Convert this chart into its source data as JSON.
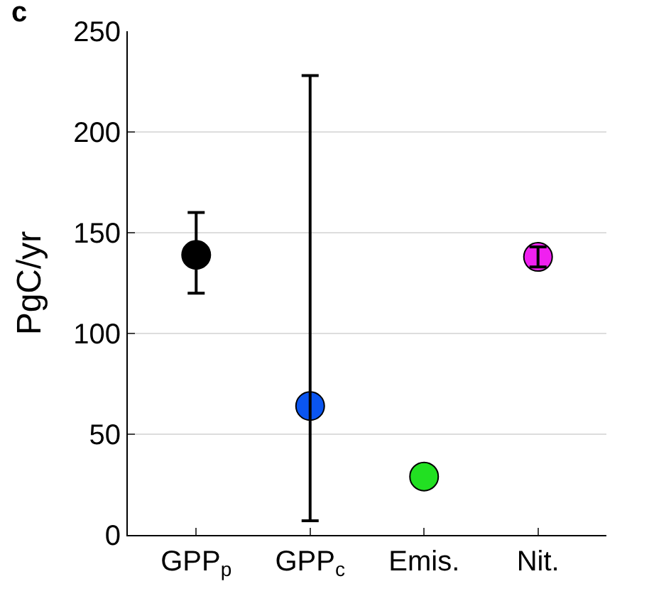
{
  "chart_data": {
    "type": "scatter",
    "title": "c",
    "ylabel": "PgC/yr",
    "categories": [
      "GPP$_{p}$",
      "GPP$_{c}$",
      "Emis.",
      "Nit."
    ],
    "values": [
      139,
      64,
      29,
      138
    ],
    "colors": [
      "#000000",
      "#0a55f0",
      "#22e022",
      "#f020f0"
    ],
    "errors": [
      [
        120,
        160
      ],
      [
        7,
        228
      ],
      null,
      [
        133,
        143
      ]
    ],
    "ylim": [
      0,
      250
    ],
    "yticks": [
      0,
      50,
      100,
      150,
      200,
      250
    ],
    "grid": "y",
    "marker": "circle",
    "legend": false
  }
}
